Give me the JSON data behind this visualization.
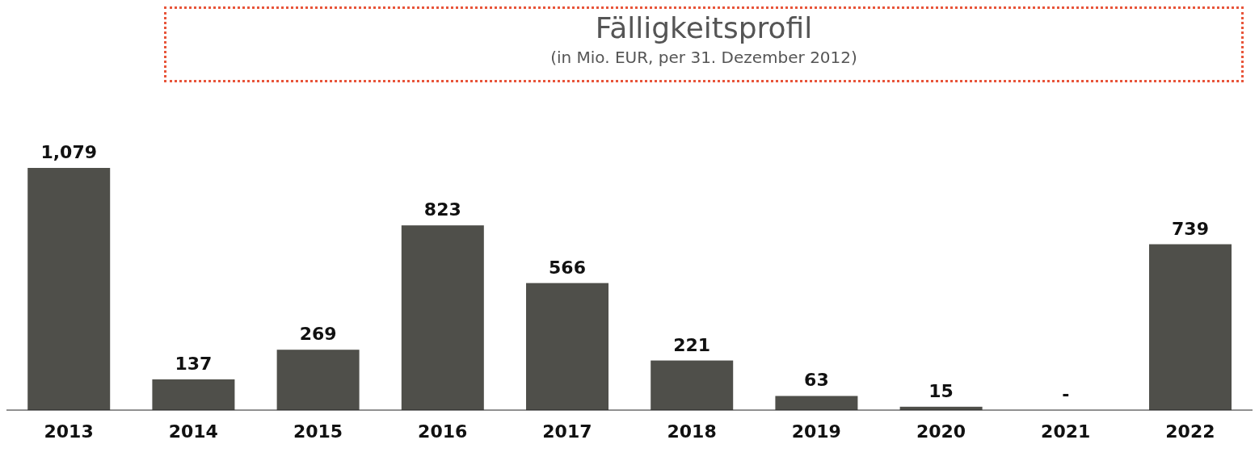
{
  "chart_data": {
    "type": "bar",
    "title": "Fälligkeitsprofil",
    "subtitle": "(in Mio. EUR, per 31. Dezember 2012)",
    "categories": [
      "2013",
      "2014",
      "2015",
      "2016",
      "2017",
      "2018",
      "2019",
      "2020",
      "2021",
      "2022"
    ],
    "values": [
      1079,
      137,
      269,
      823,
      566,
      221,
      63,
      15,
      0,
      739
    ],
    "value_labels": [
      "1,079",
      "137",
      "269",
      "823",
      "566",
      "221",
      "63",
      "15",
      "-",
      "739"
    ],
    "color": "#4f4f4a"
  }
}
